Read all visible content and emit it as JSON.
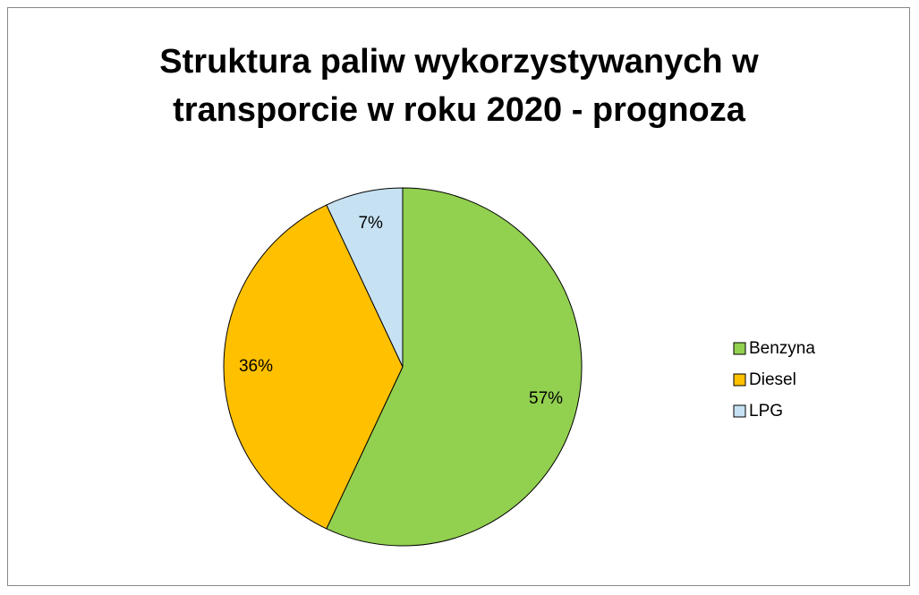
{
  "chart_data": {
    "type": "pie",
    "title": "Struktura paliw wykorzystywanych w transporcie w roku 2020 - prognoza",
    "categories": [
      "Benzyna",
      "Diesel",
      "LPG"
    ],
    "values": [
      57,
      36,
      7
    ],
    "value_labels": [
      "57%",
      "36%",
      "7%"
    ],
    "colors": [
      "#92d050",
      "#ffc000",
      "#c6e2f2"
    ],
    "legend": "right"
  }
}
